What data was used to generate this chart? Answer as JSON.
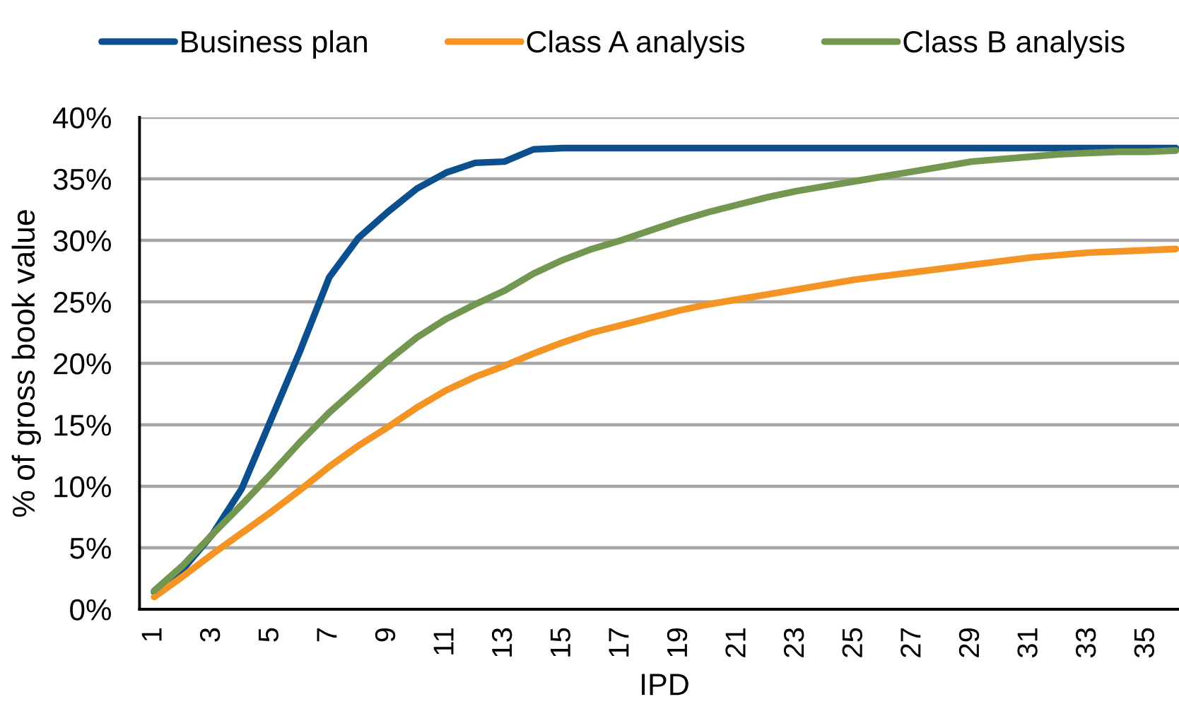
{
  "chart_data": {
    "type": "line",
    "xlabel": "IPD",
    "ylabel": "% of gross book value",
    "categories": [
      "1",
      null,
      "3",
      null,
      "5",
      null,
      "7",
      null,
      "9",
      null,
      "11",
      null,
      "13",
      null,
      "15",
      null,
      "17",
      null,
      "19",
      null,
      "21",
      null,
      "23",
      null,
      "25",
      null,
      "27",
      null,
      "29",
      null,
      "31",
      null,
      "33",
      null,
      "35",
      null
    ],
    "ylim": [
      0,
      40
    ],
    "yticks": [
      {
        "value": 0,
        "label": "0%"
      },
      {
        "value": 5,
        "label": "5%"
      },
      {
        "value": 10,
        "label": "10%"
      },
      {
        "value": 15,
        "label": "15%"
      },
      {
        "value": 20,
        "label": "20%"
      },
      {
        "value": 25,
        "label": "25%"
      },
      {
        "value": 30,
        "label": "30%"
      },
      {
        "value": 35,
        "label": "35%"
      },
      {
        "value": 40,
        "label": "40%"
      }
    ],
    "grid": "y",
    "legend": "top",
    "line_style": "solid",
    "series": [
      {
        "name": "Business plan",
        "color": "#0b4f8e",
        "values": [
          1.4,
          3.3,
          6.1,
          9.8,
          15.4,
          21.0,
          27.0,
          30.2,
          32.3,
          34.2,
          35.5,
          36.3,
          36.4,
          37.4,
          37.5,
          37.5,
          37.5,
          37.5,
          37.5,
          37.5,
          37.5,
          37.5,
          37.5,
          37.5,
          37.5,
          37.5,
          37.5,
          37.5,
          37.5,
          37.5,
          37.5,
          37.5,
          37.5,
          37.5,
          37.5,
          37.5
        ]
      },
      {
        "name": "Class A analysis",
        "color": "#f39425",
        "values": [
          1.0,
          2.7,
          4.5,
          6.2,
          7.9,
          9.7,
          11.6,
          13.3,
          14.8,
          16.4,
          17.8,
          18.9,
          19.8,
          20.8,
          21.7,
          22.5,
          23.1,
          23.7,
          24.3,
          24.8,
          25.2,
          25.6,
          26.0,
          26.4,
          26.8,
          27.1,
          27.4,
          27.7,
          28.0,
          28.3,
          28.6,
          28.8,
          29.0,
          29.1,
          29.2,
          29.3
        ]
      },
      {
        "name": "Class B analysis",
        "color": "#739650",
        "values": [
          1.5,
          3.6,
          6.1,
          8.5,
          11.0,
          13.6,
          16.0,
          18.1,
          20.2,
          22.1,
          23.6,
          24.8,
          25.9,
          27.3,
          28.4,
          29.3,
          30.0,
          30.8,
          31.6,
          32.3,
          32.9,
          33.5,
          34.0,
          34.4,
          34.8,
          35.2,
          35.6,
          36.0,
          36.4,
          36.6,
          36.8,
          37.0,
          37.1,
          37.2,
          37.2,
          37.3
        ]
      }
    ]
  }
}
